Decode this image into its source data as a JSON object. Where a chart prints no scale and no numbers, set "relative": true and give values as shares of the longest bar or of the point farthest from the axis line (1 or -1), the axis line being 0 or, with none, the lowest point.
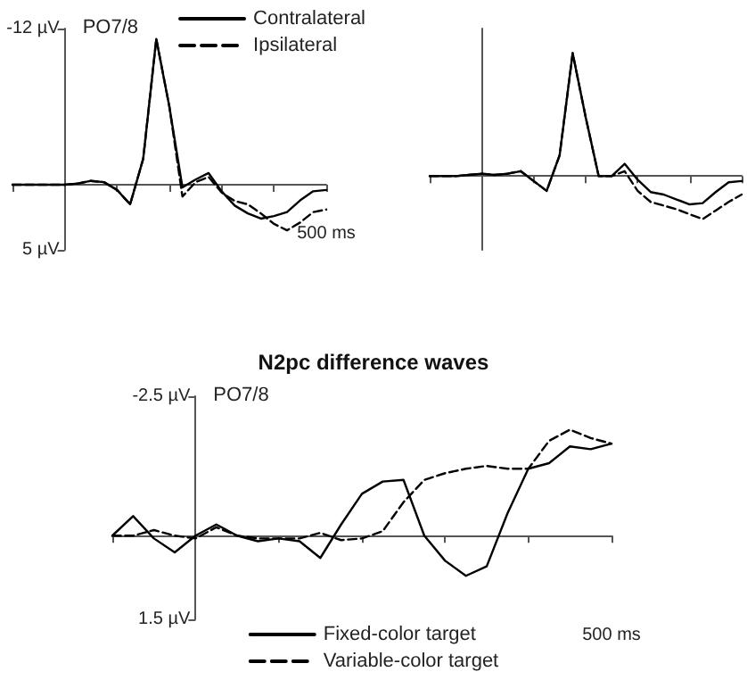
{
  "chart_data": [
    {
      "type": "line",
      "annotations": [
        "PO7/8"
      ],
      "legend": "top right",
      "marker": "none",
      "grid": false,
      "categories": [
        null,
        null,
        null,
        null,
        null,
        null,
        null,
        null,
        null,
        null,
        null,
        null,
        null,
        null,
        null,
        null,
        null,
        null,
        null,
        null,
        null,
        null,
        null,
        null,
        "500 ms"
      ],
      "ylim": [
        5,
        -12
      ],
      "yticks": [
        {
          "value": -12,
          "label": "-12 µV"
        },
        {
          "value": 5,
          "label": "5 µV"
        }
      ],
      "series": [
        {
          "name": "Contralateral",
          "color": "#000000",
          "line_style": "solid",
          "values": [
            0,
            0,
            0,
            0,
            0,
            -0.1,
            -0.3,
            -0.2,
            0.4,
            1.5,
            -2,
            -11.2,
            -6,
            0.2,
            -0.4,
            -0.9,
            0.5,
            1.6,
            2.2,
            2.6,
            2.4,
            2.1,
            1.2,
            0.5,
            0.4
          ]
        },
        {
          "name": "Ipsilateral",
          "color": "#000000",
          "line_style": "dashed",
          "values": [
            0,
            0,
            0,
            0,
            0,
            -0.1,
            -0.3,
            -0.2,
            0.4,
            1.5,
            -2,
            -11.2,
            -6,
            0.9,
            -0.2,
            -0.6,
            0.6,
            1.25,
            1.5,
            2.2,
            3.0,
            3.5,
            2.9,
            2.1,
            1.9
          ]
        }
      ]
    },
    {
      "type": "line",
      "relative": true,
      "legend": false,
      "marker": "none",
      "grid": false,
      "categories": [
        null,
        null,
        null,
        null,
        null,
        null,
        null,
        null,
        null,
        null,
        null,
        null,
        null,
        null,
        null,
        null,
        null,
        null,
        null,
        null,
        null,
        null,
        null,
        null,
        null
      ],
      "series": [
        {
          "color": "#000000",
          "line_style": "solid",
          "values": [
            0,
            0,
            0,
            0.01,
            0.02,
            0.01,
            0.02,
            0.04,
            -0.04,
            -0.12,
            0.17,
            1,
            0.48,
            0,
            0,
            0.1,
            -0.03,
            -0.13,
            -0.15,
            -0.19,
            -0.23,
            -0.22,
            -0.13,
            -0.05,
            -0.04
          ]
        },
        {
          "color": "#000000",
          "line_style": "dashed",
          "values": [
            0,
            0,
            0,
            0.01,
            0.02,
            0.01,
            0.02,
            0.04,
            -0.04,
            -0.12,
            0.17,
            1,
            0.48,
            0,
            0,
            0.04,
            -0.12,
            -0.21,
            -0.24,
            -0.27,
            -0.31,
            -0.35,
            -0.28,
            -0.21,
            -0.15
          ]
        }
      ]
    },
    {
      "type": "line",
      "title": "N2pc difference waves",
      "annotations": [
        "PO7/8"
      ],
      "legend": "bottom",
      "marker": "none",
      "grid": false,
      "categories": [
        null,
        null,
        null,
        null,
        null,
        null,
        null,
        null,
        null,
        null,
        null,
        null,
        null,
        null,
        null,
        null,
        null,
        null,
        null,
        null,
        null,
        null,
        null,
        null,
        "500 ms"
      ],
      "ylim": [
        1.5,
        -2.5
      ],
      "yticks": [
        {
          "value": -2.5,
          "label": "-2.5 µV"
        },
        {
          "value": 1.5,
          "label": "1.5 µV"
        }
      ],
      "series": [
        {
          "name": "Fixed-color target",
          "color": "#000000",
          "line_style": "solid",
          "values": [
            0,
            -0.35,
            0.05,
            0.3,
            0,
            -0.2,
            0,
            0.1,
            0.05,
            0.1,
            0.4,
            -0.2,
            -0.75,
            -0.97,
            -1.0,
            0,
            0.45,
            0.72,
            0.55,
            -0.4,
            -1.2,
            -1.3,
            -1.6,
            -1.55,
            -1.65
          ]
        },
        {
          "name": "Variable-color target",
          "color": "#000000",
          "line_style": "dashed",
          "values": [
            0,
            0,
            -0.1,
            0,
            0.05,
            -0.15,
            0,
            0.05,
            0.05,
            0.05,
            -0.05,
            0.08,
            0.05,
            -0.08,
            -0.6,
            -1.0,
            -1.12,
            -1.2,
            -1.25,
            -1.2,
            -1.2,
            -1.7,
            -1.9,
            -1.75,
            -1.65
          ]
        }
      ]
    }
  ]
}
